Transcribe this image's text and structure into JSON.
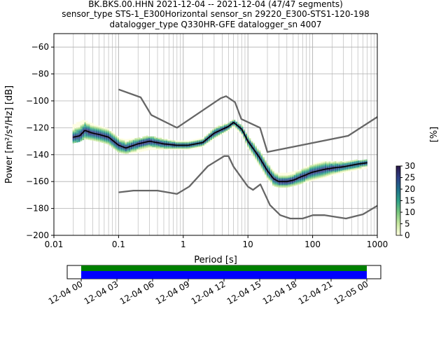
{
  "title_lines": [
    "BK.BKS.00.HHN   2021-12-04 -- 2021-12-04  (47/47 segments)",
    "sensor_type STS-1_E300Horizontal sensor_sn 29220_E300-STS1-120-198",
    "datalogger_type Q330HR-GFE datalogger_sn 4007"
  ],
  "chart_data": [
    {
      "type": "heatmap",
      "xlabel": "Period [s]",
      "ylabel": "Power [m²/s⁴/Hz] [dB]",
      "xscale": "log",
      "xlim": [
        0.01,
        1000
      ],
      "ylim": [
        -200,
        -50
      ],
      "x_ticks": [
        0.01,
        0.1,
        1,
        10,
        100,
        1000
      ],
      "x_tick_labels": [
        "0.01",
        "0.1",
        "1",
        "10",
        "100",
        "1000"
      ],
      "y_ticks": [
        -200,
        -180,
        -160,
        -140,
        -120,
        -100,
        -80,
        -60
      ],
      "y_tick_labels": [
        "−200",
        "−180",
        "−160",
        "−140",
        "−120",
        "−100",
        "−80",
        "−60"
      ],
      "grid": true,
      "colorbar": {
        "label": "[%]",
        "range": [
          0,
          30
        ],
        "ticks": [
          0,
          5,
          10,
          15,
          20,
          25,
          30
        ],
        "tick_labels": [
          "0",
          "5",
          "10",
          "15",
          "20",
          "25",
          "30"
        ],
        "colormap": [
          "#fffee0",
          "#c8e8a0",
          "#78c77e",
          "#2ea088",
          "#1f6f8b",
          "#2d3f86",
          "#2b1747"
        ]
      },
      "colors": {
        "noise_model": "#666666",
        "mean": "#000000",
        "grid": "#b0b0b0"
      },
      "series": [
        {
          "role": "mean",
          "x": [
            0.02,
            0.025,
            0.03,
            0.04,
            0.05,
            0.07,
            0.1,
            0.13,
            0.2,
            0.3,
            0.5,
            0.8,
            1.2,
            2,
            3,
            5,
            6,
            8,
            10,
            15,
            20,
            25,
            30,
            40,
            50,
            70,
            100,
            150,
            200,
            300,
            500,
            700
          ],
          "y": [
            -127,
            -126,
            -122,
            -124,
            -125,
            -127,
            -133,
            -135,
            -132,
            -130,
            -132,
            -133,
            -133,
            -131,
            -124,
            -119,
            -116,
            -121,
            -130,
            -142,
            -152,
            -158,
            -160,
            -160,
            -159,
            -156,
            -153,
            -151,
            -150,
            -149,
            -147,
            -146
          ]
        },
        {
          "role": "high_noise_model",
          "x": [
            0.1,
            0.22,
            0.32,
            0.8,
            3.8,
            4.6,
            6.3,
            7.9,
            15.4,
            20,
            354.8,
            1000
          ],
          "y": [
            -91.5,
            -97.4,
            -110.5,
            -120,
            -98,
            -96.5,
            -101,
            -113.5,
            -120,
            -138,
            -126,
            -112
          ]
        },
        {
          "role": "low_noise_model",
          "x": [
            0.1,
            0.17,
            0.4,
            0.8,
            1.24,
            2.4,
            4.3,
            5,
            6,
            10,
            12,
            15.6,
            21.9,
            31.6,
            45,
            70,
            101,
            154,
            328,
            600,
            1000
          ],
          "y": [
            -168,
            -166.7,
            -166.7,
            -169.2,
            -163.7,
            -148.6,
            -141.1,
            -141.1,
            -149,
            -163.8,
            -166.2,
            -162.1,
            -177.5,
            -185,
            -187.5,
            -187.5,
            -185,
            -185,
            -187.5,
            -184.4,
            -178
          ]
        }
      ],
      "spread": {
        "x": [
          0.02,
          0.025,
          0.03,
          0.04,
          0.05,
          0.07,
          0.1,
          0.13,
          0.2,
          0.3,
          0.5,
          0.8,
          1.2,
          2,
          3,
          5,
          6,
          8,
          10,
          15,
          20,
          25,
          30,
          40,
          50,
          70,
          100,
          150,
          200,
          300,
          500,
          700
        ],
        "upper": [
          -118,
          -115,
          -114,
          -117,
          -119,
          -121,
          -127,
          -129,
          -128,
          -126,
          -128,
          -130,
          -130,
          -128,
          -120,
          -116,
          -114,
          -118,
          -126,
          -137,
          -146,
          -152,
          -154,
          -154,
          -153,
          -150,
          -147,
          -145,
          -145,
          -145,
          -144,
          -144
        ],
        "lower": [
          -131,
          -130,
          -128,
          -129,
          -130,
          -132,
          -138,
          -139,
          -138,
          -136,
          -136,
          -136,
          -136,
          -134,
          -128,
          -122,
          -119,
          -125,
          -135,
          -148,
          -158,
          -163,
          -164,
          -164,
          -163,
          -161,
          -159,
          -157,
          -155,
          -153,
          -151,
          -150
        ]
      }
    },
    {
      "type": "bar",
      "orientation": "horizontal",
      "x_ticks": [
        "12-04 00",
        "12-04 03",
        "12-04 06",
        "12-04 09",
        "12-04 12",
        "12-04 15",
        "12-04 18",
        "12-04 21",
        "12-05 00"
      ],
      "xlim": [
        "12-04 00",
        "12-05 00"
      ],
      "bars": [
        {
          "role": "data_coverage",
          "start": "12-04 00",
          "end": "12-05 00",
          "color": "#008000"
        },
        {
          "role": "psd_coverage",
          "start": "12-04 00",
          "end": "12-05 00",
          "color": "#0000ff"
        }
      ]
    }
  ]
}
